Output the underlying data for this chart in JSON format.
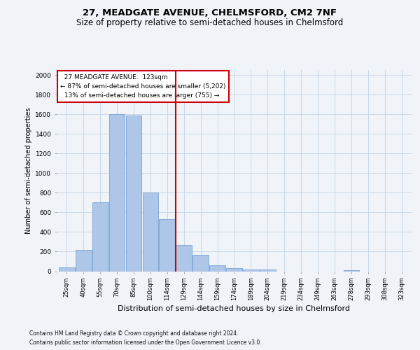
{
  "title1": "27, MEADGATE AVENUE, CHELMSFORD, CM2 7NF",
  "title2": "Size of property relative to semi-detached houses in Chelmsford",
  "xlabel": "Distribution of semi-detached houses by size in Chelmsford",
  "ylabel": "Number of semi-detached properties",
  "categories": [
    "25sqm",
    "40sqm",
    "55sqm",
    "70sqm",
    "85sqm",
    "100sqm",
    "114sqm",
    "129sqm",
    "144sqm",
    "159sqm",
    "174sqm",
    "189sqm",
    "204sqm",
    "219sqm",
    "234sqm",
    "249sqm",
    "263sqm",
    "278sqm",
    "293sqm",
    "308sqm",
    "323sqm"
  ],
  "values": [
    40,
    215,
    700,
    1600,
    1590,
    800,
    530,
    270,
    165,
    60,
    30,
    20,
    15,
    0,
    0,
    0,
    0,
    10,
    0,
    0,
    0
  ],
  "bar_color": "#aec6e8",
  "bar_edge_color": "#6699cc",
  "vline_index": 6.5,
  "annotation_line1": "  27 MEADGATE AVENUE:  123sqm",
  "annotation_line2": "← 87% of semi-detached houses are smaller (5,202)",
  "annotation_line3": "  13% of semi-detached houses are larger (755) →",
  "vline_color": "#cc0000",
  "box_edge_color": "#cc0000",
  "ylim_max": 2050,
  "yticks": [
    0,
    200,
    400,
    600,
    800,
    1000,
    1200,
    1400,
    1600,
    1800,
    2000
  ],
  "grid_color": "#c8d8e8",
  "bg_color": "#f0f4f8",
  "footnote1": "Contains HM Land Registry data © Crown copyright and database right 2024.",
  "footnote2": "Contains public sector information licensed under the Open Government Licence v3.0."
}
